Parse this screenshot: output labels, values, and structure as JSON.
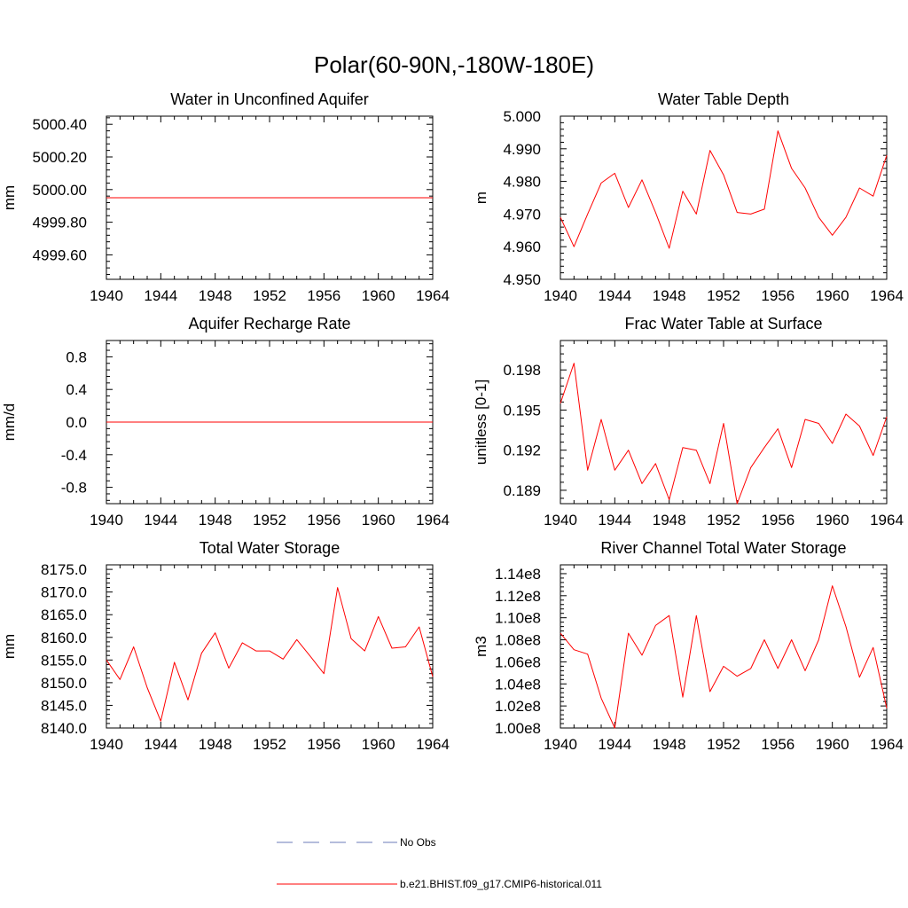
{
  "page": {
    "title": "Polar(60-90N,-180W-180E)"
  },
  "chart_data": [
    {
      "type": "line",
      "title": "Water in Unconfined Aquifer",
      "ylabel": "mm",
      "xlim": [
        1940,
        1964
      ],
      "ylim": [
        4999.45,
        5000.45
      ],
      "xticks": [
        1940,
        1944,
        1948,
        1952,
        1956,
        1960,
        1964
      ],
      "yticks": [
        4999.6,
        4999.8,
        5000.0,
        5000.2,
        5000.4
      ],
      "ytick_labels": [
        "4999.60",
        "4999.80",
        "5000.00",
        "5000.20",
        "5000.40"
      ],
      "grid": false,
      "series": [
        {
          "color": "#ff0000",
          "x": [
            1940,
            1964
          ],
          "y": [
            4999.95,
            4999.95
          ]
        }
      ]
    },
    {
      "type": "line",
      "title": "Water Table Depth",
      "ylabel": "m",
      "xlim": [
        1940,
        1964
      ],
      "ylim": [
        4.95,
        5.0
      ],
      "xticks": [
        1940,
        1944,
        1948,
        1952,
        1956,
        1960,
        1964
      ],
      "yticks": [
        4.95,
        4.96,
        4.97,
        4.98,
        4.99,
        5.0
      ],
      "ytick_labels": [
        "4.950",
        "4.960",
        "4.970",
        "4.980",
        "4.990",
        "5.000"
      ],
      "grid": false,
      "series": [
        {
          "color": "#ff0000",
          "x": [
            1940,
            1941,
            1942,
            1943,
            1944,
            1945,
            1946,
            1947,
            1948,
            1949,
            1950,
            1951,
            1952,
            1953,
            1954,
            1955,
            1956,
            1957,
            1958,
            1959,
            1960,
            1961,
            1962,
            1963,
            1964
          ],
          "y": [
            4.969,
            4.96,
            4.97,
            4.9795,
            4.9825,
            4.972,
            4.9805,
            4.9705,
            4.9595,
            4.977,
            4.97,
            4.9895,
            4.982,
            4.9705,
            4.97,
            4.9715,
            4.9955,
            4.984,
            4.978,
            4.969,
            4.9635,
            4.969,
            4.978,
            4.9755,
            4.988
          ]
        }
      ]
    },
    {
      "type": "line",
      "title": "Aquifer Recharge Rate",
      "ylabel": "mm/d",
      "xlim": [
        1940,
        1964
      ],
      "ylim": [
        -1.0,
        1.0
      ],
      "xticks": [
        1940,
        1944,
        1948,
        1952,
        1956,
        1960,
        1964
      ],
      "yticks": [
        -0.8,
        -0.4,
        0.0,
        0.4,
        0.8
      ],
      "ytick_labels": [
        "-0.8",
        "-0.4",
        "0.0",
        "0.4",
        "0.8"
      ],
      "grid": false,
      "series": [
        {
          "color": "#ff0000",
          "x": [
            1940,
            1964
          ],
          "y": [
            0.0,
            0.0
          ]
        }
      ]
    },
    {
      "type": "line",
      "title": "Frac Water Table at Surface",
      "ylabel": "unitless [0-1]",
      "xlim": [
        1940,
        1964
      ],
      "ylim": [
        0.188,
        0.2002
      ],
      "xticks": [
        1940,
        1944,
        1948,
        1952,
        1956,
        1960,
        1964
      ],
      "yticks": [
        0.189,
        0.192,
        0.195,
        0.198
      ],
      "ytick_labels": [
        "0.189",
        "0.192",
        "0.195",
        "0.198"
      ],
      "grid": false,
      "series": [
        {
          "color": "#ff0000",
          "x": [
            1940,
            1941,
            1942,
            1943,
            1944,
            1945,
            1946,
            1947,
            1948,
            1949,
            1950,
            1951,
            1952,
            1953,
            1954,
            1955,
            1956,
            1957,
            1958,
            1959,
            1960,
            1961,
            1962,
            1963,
            1964
          ],
          "y": [
            0.1955,
            0.1985,
            0.1905,
            0.1943,
            0.1905,
            0.192,
            0.1895,
            0.191,
            0.1883,
            0.1922,
            0.192,
            0.1895,
            0.194,
            0.188,
            0.1907,
            0.1922,
            0.1936,
            0.1907,
            0.1943,
            0.194,
            0.1925,
            0.1947,
            0.1938,
            0.1916,
            0.1945
          ]
        }
      ]
    },
    {
      "type": "line",
      "title": "Total Water Storage",
      "ylabel": "mm",
      "xlim": [
        1940,
        1964
      ],
      "ylim": [
        8140.0,
        8176.0
      ],
      "xticks": [
        1940,
        1944,
        1948,
        1952,
        1956,
        1960,
        1964
      ],
      "yticks": [
        8140,
        8145,
        8150,
        8155,
        8160,
        8165,
        8170,
        8175
      ],
      "ytick_labels": [
        "8140.0",
        "8145.0",
        "8150.0",
        "8155.0",
        "8160.0",
        "8165.0",
        "8170.0",
        "8175.0"
      ],
      "grid": false,
      "series": [
        {
          "color": "#ff0000",
          "x": [
            1940,
            1941,
            1942,
            1943,
            1944,
            1945,
            1946,
            1947,
            1948,
            1949,
            1950,
            1951,
            1952,
            1953,
            1954,
            1955,
            1956,
            1957,
            1958,
            1959,
            1960,
            1961,
            1962,
            1963,
            1964
          ],
          "y": [
            8155.0,
            8150.7,
            8157.9,
            8148.9,
            8141.5,
            8154.5,
            8146.2,
            8156.5,
            8161.0,
            8153.2,
            8158.8,
            8157.0,
            8157.0,
            8155.2,
            8159.5,
            8155.8,
            8152.0,
            8171.0,
            8159.7,
            8157.0,
            8164.6,
            8157.6,
            8157.9,
            8162.3,
            8151.3
          ]
        }
      ]
    },
    {
      "type": "line",
      "title": "River Channel Total Water Storage",
      "ylabel": "m3",
      "xlim": [
        1940,
        1964
      ],
      "ylim": [
        100000000,
        114800000
      ],
      "xticks": [
        1940,
        1944,
        1948,
        1952,
        1956,
        1960,
        1964
      ],
      "yticks": [
        100000000,
        102000000,
        104000000,
        106000000,
        108000000,
        110000000,
        112000000,
        114000000
      ],
      "ytick_labels": [
        "1.00e8",
        "1.02e8",
        "1.04e8",
        "1.06e8",
        "1.08e8",
        "1.10e8",
        "1.12e8",
        "1.14e8"
      ],
      "grid": false,
      "series": [
        {
          "color": "#ff0000",
          "x": [
            1940,
            1941,
            1942,
            1943,
            1944,
            1945,
            1946,
            1947,
            1948,
            1949,
            1950,
            1951,
            1952,
            1953,
            1954,
            1955,
            1956,
            1957,
            1958,
            1959,
            1960,
            1961,
            1962,
            1963,
            1964
          ],
          "y": [
            108600000,
            107100000,
            106700000,
            102700000,
            100000000,
            108600000,
            106600000,
            109300000,
            110200000,
            102800000,
            110200000,
            103300000,
            105600000,
            104700000,
            105400000,
            108000000,
            105400000,
            108000000,
            105200000,
            108000000,
            112900000,
            109200000,
            104600000,
            107300000,
            101800000
          ]
        }
      ]
    }
  ],
  "legend": {
    "placement": "bottom-center",
    "entries": [
      {
        "label": "No Obs",
        "color": "#6b7bb8",
        "dash": "dashed"
      },
      {
        "label": "b.e21.BHIST.f09_g17.CMIP6-historical.011",
        "color": "#ff0000",
        "dash": "solid"
      }
    ]
  }
}
